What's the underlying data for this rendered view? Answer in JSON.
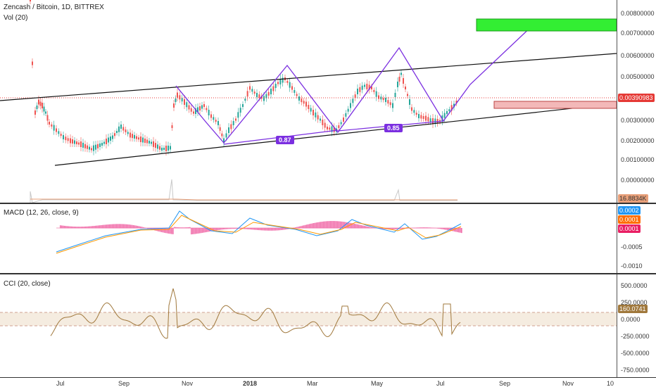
{
  "main": {
    "title": "Zencash / Bitcoin, 1D, BITTREX",
    "vol_label": "Vol (20)",
    "price_axis": [
      "0.00800000",
      "0.00700000",
      "0.00600000",
      "0.00500000",
      "0.00300000",
      "0.00200000",
      "0.00100000",
      "0.00000000"
    ],
    "price_tag": "0.00390983",
    "vol_tag": "16.8834K",
    "channel_labels": [
      "0.87",
      "0.85"
    ],
    "colors": {
      "accent": "#7b2fe0",
      "up": "#26a69a",
      "down": "#ef5350",
      "target": "#33ee33",
      "zone": "#f3b8b8"
    }
  },
  "macd": {
    "title": "MACD (12, 26, close, 9)",
    "axis": [
      "-0.0005",
      "-0.0010"
    ],
    "tags": [
      {
        "text": "0.0002",
        "color": "#2196f3"
      },
      {
        "text": "0.0001",
        "color": "#ff6d00"
      },
      {
        "text": "0.0001",
        "color": "#e91e63"
      }
    ]
  },
  "cci": {
    "title": "CCI (20, close)",
    "axis": [
      "500.0000",
      "250.0000",
      "0.0000",
      "-250.0000",
      "-500.0000",
      "-750.0000"
    ],
    "tag": "160.0741",
    "tag_color": "#a0783c"
  },
  "time_axis": {
    "labels": [
      {
        "text": "Jul",
        "bold": false
      },
      {
        "text": "Sep",
        "bold": false
      },
      {
        "text": "Nov",
        "bold": false
      },
      {
        "text": "2018",
        "bold": true
      },
      {
        "text": "Mar",
        "bold": false
      },
      {
        "text": "May",
        "bold": false
      },
      {
        "text": "Jul",
        "bold": false
      },
      {
        "text": "Sep",
        "bold": false
      },
      {
        "text": "Nov",
        "bold": false
      },
      {
        "text": "10",
        "bold": false
      }
    ]
  }
}
